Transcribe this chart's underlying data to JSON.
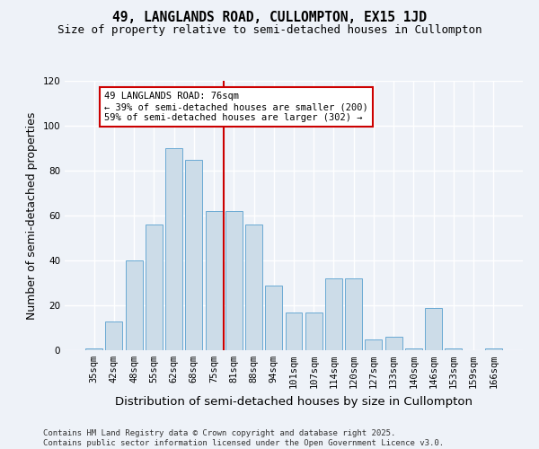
{
  "title": "49, LANGLANDS ROAD, CULLOMPTON, EX15 1JD",
  "subtitle": "Size of property relative to semi-detached houses in Cullompton",
  "xlabel": "Distribution of semi-detached houses by size in Cullompton",
  "ylabel": "Number of semi-detached properties",
  "categories": [
    "35sqm",
    "42sqm",
    "48sqm",
    "55sqm",
    "62sqm",
    "68sqm",
    "75sqm",
    "81sqm",
    "88sqm",
    "94sqm",
    "101sqm",
    "107sqm",
    "114sqm",
    "120sqm",
    "127sqm",
    "133sqm",
    "140sqm",
    "146sqm",
    "153sqm",
    "159sqm",
    "166sqm"
  ],
  "values": [
    1,
    13,
    40,
    56,
    90,
    85,
    62,
    62,
    56,
    29,
    17,
    17,
    32,
    32,
    5,
    6,
    1,
    19,
    1,
    0,
    1
  ],
  "bar_color": "#ccdce8",
  "bar_edge_color": "#6aaad4",
  "bar_width": 0.85,
  "ylim": [
    0,
    120
  ],
  "yticks": [
    0,
    20,
    40,
    60,
    80,
    100,
    120
  ],
  "annotation_line1": "49 LANGLANDS ROAD: 76sqm",
  "annotation_line2": "← 39% of semi-detached houses are smaller (200)",
  "annotation_line3": "59% of semi-detached houses are larger (302) →",
  "annotation_box_color": "#ffffff",
  "annotation_box_edge": "#cc0000",
  "vline_color": "#cc0000",
  "footer1": "Contains HM Land Registry data © Crown copyright and database right 2025.",
  "footer2": "Contains public sector information licensed under the Open Government Licence v3.0.",
  "bg_color": "#eef2f8",
  "grid_color": "#ffffff",
  "title_fontsize": 10.5,
  "subtitle_fontsize": 9,
  "axis_label_fontsize": 9,
  "tick_fontsize": 7.5,
  "footer_fontsize": 6.5,
  "annotation_fontsize": 7.5
}
